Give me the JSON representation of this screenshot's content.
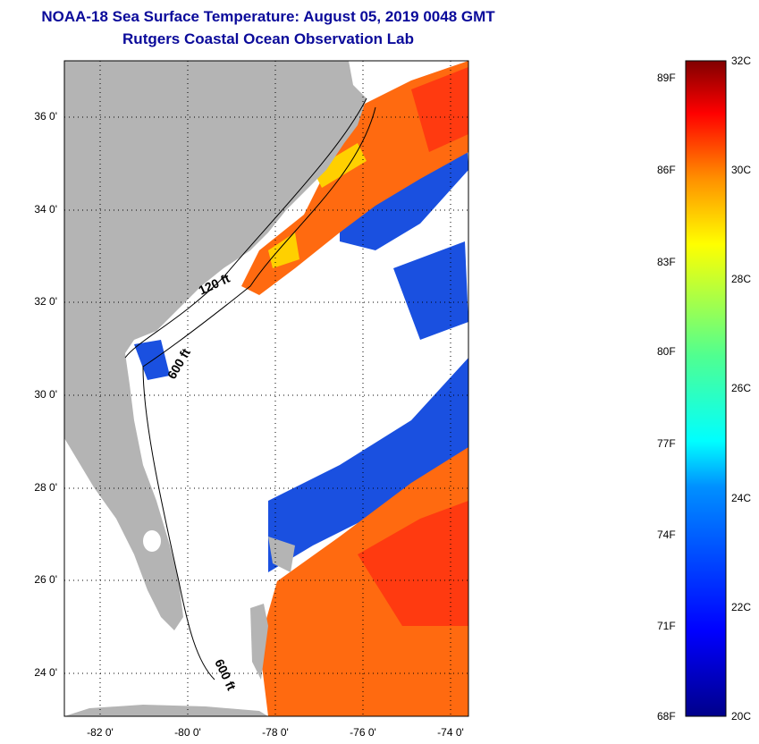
{
  "header": {
    "title": "NOAA-18 Sea Surface Temperature:  August 05, 2019 0048 GMT",
    "subtitle": "Rutgers Coastal Ocean Observation Lab"
  },
  "map": {
    "lat_labels": [
      "36 0'",
      "34 0'",
      "32 0'",
      "30 0'",
      "28 0'",
      "26 0'",
      "24 0'"
    ],
    "lon_labels": [
      "-82 0'",
      "-80 0'",
      "-78 0'",
      "-76 0'",
      "-74 0'"
    ],
    "contour_labels": [
      "120 ft",
      "600 ft",
      "600 ft"
    ],
    "colors": {
      "land": "#b4b4b4",
      "warm": "#ff6a10",
      "hot": "#ff3a00",
      "cool": "#1a60ff",
      "cold": "#0010b0",
      "mid": "#ffd000"
    }
  },
  "colorbar": {
    "f_labels": [
      "89F",
      "86F",
      "83F",
      "80F",
      "77F",
      "74F",
      "71F",
      "68F"
    ],
    "c_labels": [
      "32C",
      "30C",
      "28C",
      "26C",
      "24C",
      "22C",
      "20C"
    ],
    "range_c": [
      20,
      32
    ]
  }
}
